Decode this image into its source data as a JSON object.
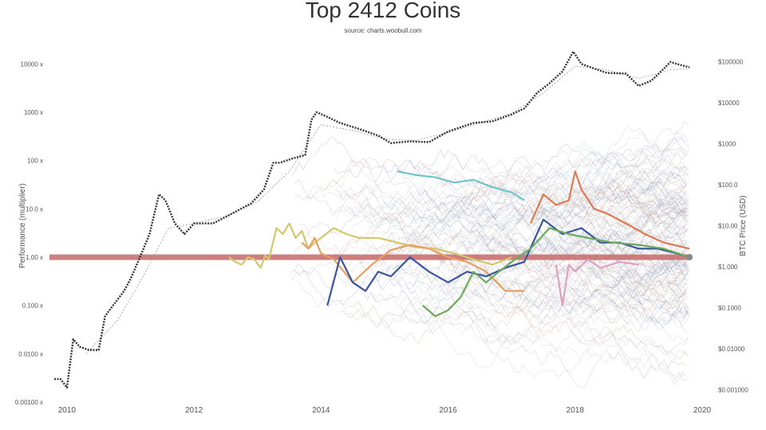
{
  "chart_data": {
    "type": "line",
    "title": "Top 2412 Coins",
    "subtitle": "source: charts.woobull.com",
    "ylabel": "Performance (multiplier)",
    "ylabel_right": "BTC Price (USD)",
    "xlabel": "",
    "x_range": [
      2009.7,
      2020.0
    ],
    "ylim": [
      0.001,
      20000
    ],
    "ylim_right": [
      0.0005,
      200000
    ],
    "y_scale": "log",
    "grid": false,
    "x_ticks": [
      {
        "value": 2010,
        "label": "2010"
      },
      {
        "value": 2012,
        "label": "2012"
      },
      {
        "value": 2014,
        "label": "2014"
      },
      {
        "value": 2016,
        "label": "2016"
      },
      {
        "value": 2018,
        "label": "2018"
      },
      {
        "value": 2020,
        "label": "2020"
      }
    ],
    "y_ticks_left": [
      {
        "value": 10000,
        "label": "10000 x"
      },
      {
        "value": 1000,
        "label": "1000 x"
      },
      {
        "value": 100,
        "label": "100 x"
      },
      {
        "value": 10,
        "label": "10.0 x"
      },
      {
        "value": 1,
        "label": "1.00 x"
      },
      {
        "value": 0.1,
        "label": "0.100 x"
      },
      {
        "value": 0.01,
        "label": "0.0100 x"
      },
      {
        "value": 0.001,
        "label": "0.00100 x"
      }
    ],
    "y_ticks_right": [
      {
        "value": 100000,
        "label": "$100000"
      },
      {
        "value": 10000,
        "label": "$10000"
      },
      {
        "value": 1000,
        "label": "$1000"
      },
      {
        "value": 100,
        "label": "$100.0"
      },
      {
        "value": 10,
        "label": "$10.00"
      },
      {
        "value": 1,
        "label": "$1.000"
      },
      {
        "value": 0.1,
        "label": "$0.1000"
      },
      {
        "value": 0.01,
        "label": "$0.01000"
      },
      {
        "value": 0.001,
        "label": "$0.001000"
      }
    ],
    "reference_line": {
      "y": 1,
      "color": "#c9706f"
    },
    "btc_price": {
      "color": "#333333",
      "x": [
        2009.8,
        2009.9,
        2010.0,
        2010.1,
        2010.2,
        2010.35,
        2010.5,
        2010.6,
        2010.7,
        2010.9,
        2011.0,
        2011.15,
        2011.3,
        2011.45,
        2011.55,
        2011.7,
        2011.85,
        2012.0,
        2012.3,
        2012.6,
        2012.9,
        2013.1,
        2013.25,
        2013.35,
        2013.55,
        2013.75,
        2013.85,
        2013.93,
        2014.1,
        2014.3,
        2014.6,
        2014.9,
        2015.1,
        2015.4,
        2015.7,
        2016.0,
        2016.4,
        2016.7,
        2017.0,
        2017.2,
        2017.4,
        2017.6,
        2017.8,
        2017.97,
        2018.1,
        2018.3,
        2018.5,
        2018.8,
        2019.0,
        2019.2,
        2019.4,
        2019.5,
        2019.6,
        2019.8
      ],
      "y": [
        0.003,
        0.003,
        0.002,
        0.02,
        0.014,
        0.012,
        0.012,
        0.06,
        0.09,
        0.2,
        0.35,
        1.0,
        3.0,
        20,
        15,
        5,
        3,
        5,
        5,
        8,
        13,
        25,
        90,
        90,
        110,
        130,
        700,
        1000,
        800,
        600,
        450,
        330,
        230,
        250,
        240,
        400,
        600,
        650,
        900,
        1200,
        2500,
        4000,
        7000,
        18000,
        10000,
        8000,
        6500,
        6300,
        3500,
        4500,
        8000,
        11000,
        10000,
        8500
      ]
    },
    "btc_trend": {
      "color": "#999999",
      "x": [
        2010.3,
        2010.8,
        2011.2,
        2011.6,
        2012.0,
        2012.5,
        2013.0,
        2013.5,
        2014.0,
        2014.5,
        2015.0,
        2015.5,
        2016.0,
        2016.5,
        2017.0,
        2017.5,
        2018.0,
        2018.5,
        2019.0,
        2019.5,
        2019.8
      ],
      "y": [
        0.01,
        0.05,
        0.4,
        4,
        5,
        7,
        14,
        60,
        550,
        420,
        280,
        260,
        380,
        600,
        950,
        2500,
        9000,
        7500,
        5000,
        7500,
        8000
      ]
    },
    "series": [
      {
        "color": "#d4c66a",
        "x": [
          2012.55,
          2012.65,
          2012.75,
          2012.85,
          2012.95,
          2013.05,
          2013.12,
          2013.18,
          2013.3,
          2013.4,
          2013.5,
          2013.6,
          2013.7,
          2013.8,
          2013.9,
          2014.0,
          2014.2,
          2014.4,
          2014.6,
          2014.9,
          2015.2,
          2015.5,
          2015.8,
          2016.1,
          2016.4,
          2016.7,
          2017.0
        ],
        "y": [
          1.0,
          0.8,
          0.7,
          1.0,
          0.9,
          0.6,
          1.1,
          0.9,
          4.0,
          3.0,
          5.0,
          2.5,
          3.5,
          1.5,
          2.0,
          2.5,
          4.0,
          3.0,
          2.5,
          2.5,
          2.0,
          1.6,
          1.5,
          1.2,
          0.9,
          0.7,
          1.0
        ]
      },
      {
        "color": "#e8a060",
        "x": [
          2013.7,
          2013.8,
          2013.9,
          2014.0,
          2014.2,
          2014.5,
          2014.8,
          2015.1,
          2015.4,
          2015.7,
          2016.0,
          2016.3,
          2016.6,
          2016.9,
          2017.2
        ],
        "y": [
          2.0,
          1.5,
          2.5,
          1.2,
          0.9,
          0.3,
          0.7,
          1.4,
          1.8,
          1.5,
          1.0,
          0.8,
          0.5,
          0.2,
          0.2
        ]
      },
      {
        "color": "#3a55a0",
        "x": [
          2014.1,
          2014.3,
          2014.5,
          2014.7,
          2014.9,
          2015.1,
          2015.4,
          2015.7,
          2016.0,
          2016.3,
          2016.6,
          2016.9,
          2017.2,
          2017.5,
          2017.8,
          2018.1,
          2018.4,
          2018.7,
          2019.0,
          2019.3,
          2019.6,
          2019.8
        ],
        "y": [
          0.1,
          1.0,
          0.3,
          0.2,
          0.5,
          0.4,
          1.0,
          0.5,
          0.3,
          0.5,
          0.4,
          0.6,
          0.8,
          6.0,
          3.0,
          4.0,
          2.0,
          2.0,
          1.5,
          1.5,
          1.2,
          1.0
        ]
      },
      {
        "color": "#6fc4cc",
        "x": [
          2015.2,
          2015.5,
          2015.8,
          2016.1,
          2016.4,
          2016.7,
          2017.0,
          2017.2
        ],
        "y": [
          60,
          50,
          45,
          35,
          40,
          28,
          22,
          15
        ]
      },
      {
        "color": "#6bab5b",
        "x": [
          2015.6,
          2015.8,
          2016.0,
          2016.2,
          2016.4,
          2016.6,
          2016.8,
          2017.0,
          2017.3,
          2017.6,
          2017.9,
          2018.2,
          2018.6,
          2019.0,
          2019.4,
          2019.8
        ],
        "y": [
          0.1,
          0.06,
          0.08,
          0.15,
          0.5,
          0.3,
          0.5,
          0.8,
          1.5,
          4.0,
          3.0,
          2.5,
          2.0,
          1.8,
          1.5,
          1.0
        ]
      },
      {
        "color": "#e07850",
        "x": [
          2017.3,
          2017.5,
          2017.7,
          2017.9,
          2018.0,
          2018.1,
          2018.3,
          2018.5,
          2018.8,
          2019.1,
          2019.4,
          2019.8
        ],
        "y": [
          5.0,
          20,
          12,
          15,
          60,
          25,
          10,
          8,
          5,
          3,
          2,
          1.5
        ]
      },
      {
        "color": "#e0a0c0",
        "x": [
          2017.7,
          2017.8,
          2017.9,
          2018.0,
          2018.2,
          2018.4,
          2018.7,
          2019.0
        ],
        "y": [
          0.7,
          0.1,
          0.7,
          0.5,
          0.9,
          0.6,
          0.8,
          0.7
        ]
      }
    ]
  }
}
